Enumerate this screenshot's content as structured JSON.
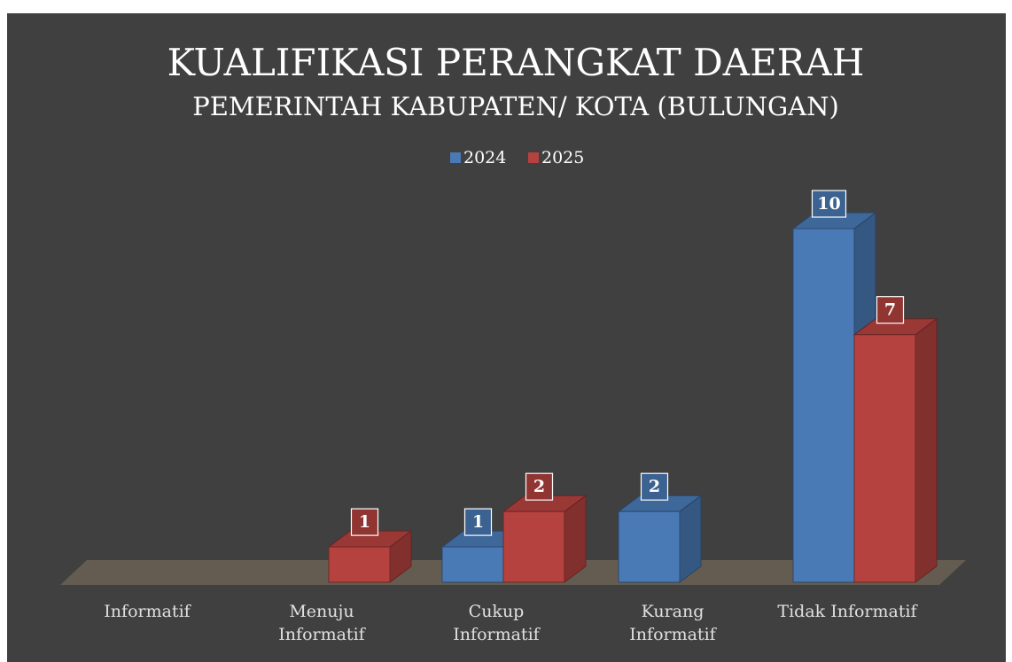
{
  "chart_data": {
    "type": "bar3d",
    "title": "KUALIFIKASI PERANGKAT DAERAH",
    "subtitle": "PEMERINTAH KABUPATEN/ KOTA (BULUNGAN)",
    "categories": [
      "Informatif",
      "Menuju Informatif",
      "Cukup Informatif",
      "Kurang Informatif",
      "Tidak Informatif"
    ],
    "series": [
      {
        "name": "2024",
        "color": "#4a7ab5",
        "values": [
          null,
          null,
          1,
          2,
          10
        ]
      },
      {
        "name": "2025",
        "color": "#b5423f",
        "values": [
          null,
          1,
          2,
          null,
          7
        ]
      }
    ],
    "legend": "top"
  }
}
